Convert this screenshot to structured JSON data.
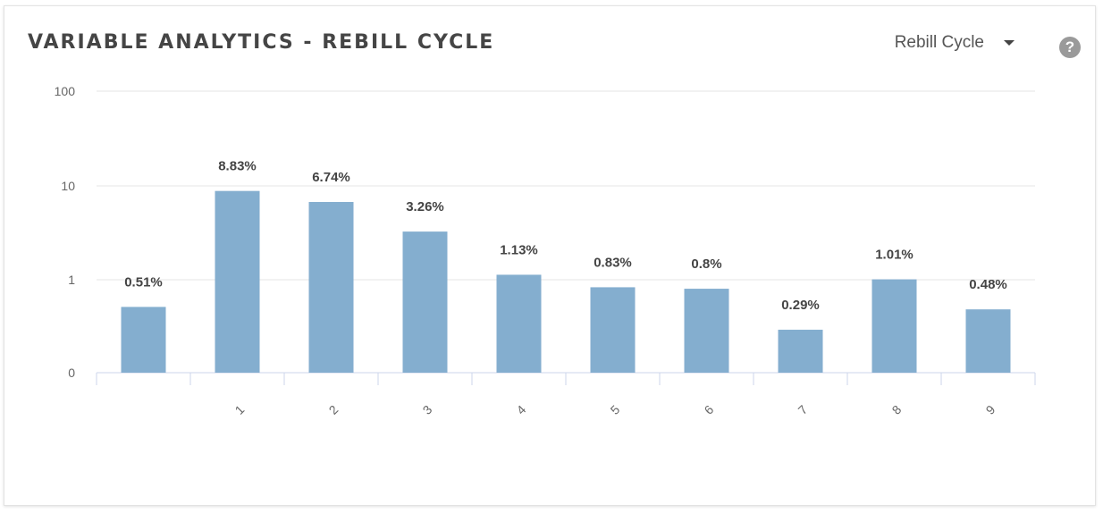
{
  "header": {
    "title": "VARIABLE ANALYTICS - REBILL CYCLE",
    "selector_label": "Rebill Cycle",
    "help_glyph": "?"
  },
  "colors": {
    "bar": "#84aecf",
    "grid": "#e5e5e5",
    "axis": "#ccd6eb",
    "label": "#444444",
    "tick": "#666666"
  },
  "chart_data": {
    "type": "bar",
    "title": "",
    "xlabel": "",
    "ylabel": "",
    "y_scale": "log",
    "y_ticks": [
      "0",
      "1",
      "10",
      "100"
    ],
    "grid": true,
    "categories": [
      "",
      "1",
      "2",
      "3",
      "4",
      "5",
      "6",
      "7",
      "8",
      "9"
    ],
    "values": [
      0.51,
      8.83,
      6.74,
      3.26,
      1.13,
      0.83,
      0.8,
      0.29,
      1.01,
      0.48
    ],
    "data_labels": [
      "0.51%",
      "8.83%",
      "6.74%",
      "3.26%",
      "1.13%",
      "0.83%",
      "0.8%",
      "0.29%",
      "1.01%",
      "0.48%"
    ]
  }
}
